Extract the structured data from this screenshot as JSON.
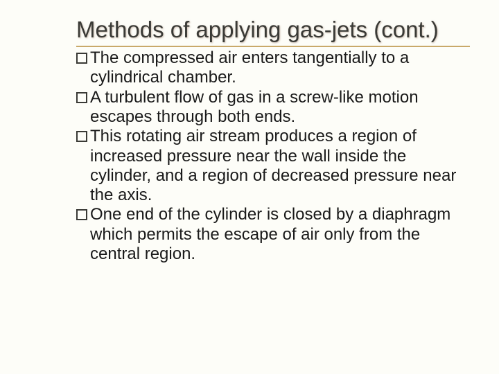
{
  "slide": {
    "title": "Methods of applying gas-jets (cont.)",
    "bullets": [
      "The compressed air enters tangentially to a cylindrical chamber.",
      "A turbulent flow of gas in a screw-like motion escapes through both ends.",
      "This rotating air stream produces a region of increased pressure near the wall inside the cylinder, and a region of decreased pressure near the axis.",
      "One end of the cylinder is closed by a diaphragm which permits the escape of air only from the central region."
    ]
  },
  "styling": {
    "background_color": "#fdfdf8",
    "title_color": "#3a3a36",
    "title_fontsize": 33,
    "title_underline_color": "#c9a96a",
    "body_color": "#1a1a1a",
    "body_fontsize": 24,
    "bullet_marker": "square-outline",
    "bullet_border_color": "#3a3a36",
    "font_family": "Arial"
  }
}
